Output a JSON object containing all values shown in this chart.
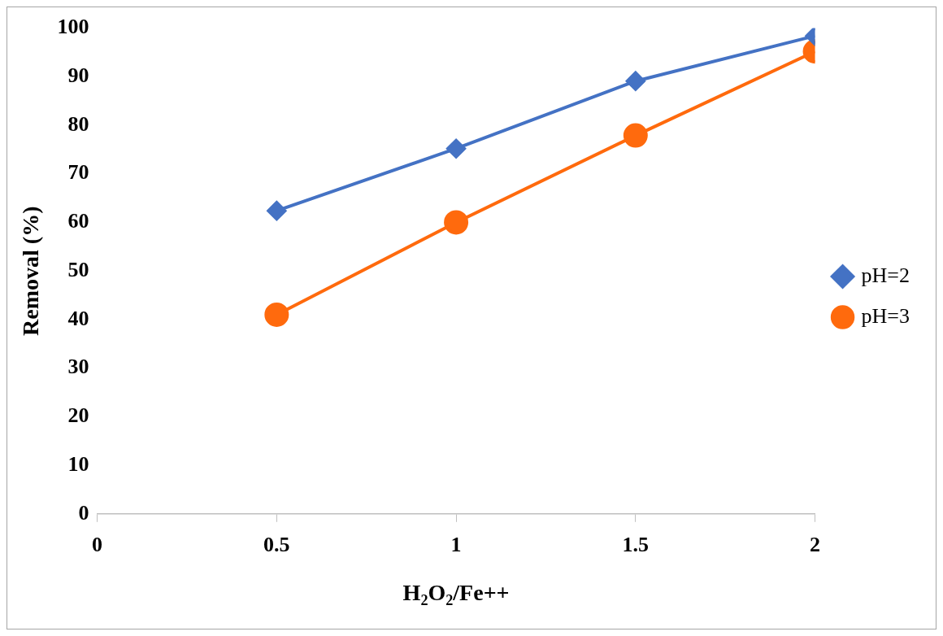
{
  "chart_data": {
    "type": "line",
    "xlabel": "H$_{2}$O$_{2}$/Fe++",
    "ylabel": "Removal (%)",
    "x": [
      0.5,
      1,
      1.5,
      2
    ],
    "series": [
      {
        "name": "pH=2",
        "color": "#4472c4",
        "marker": "diamond",
        "values": [
          62.4,
          75.2,
          89.1,
          98.4
        ]
      },
      {
        "name": "pH=3",
        "color": "#ff6a0d",
        "marker": "circle",
        "values": [
          41,
          60,
          77.9,
          95.2
        ]
      }
    ],
    "xlim": [
      0,
      2
    ],
    "xticks": [
      0,
      0.5,
      1,
      1.5,
      2
    ],
    "ylim": [
      0,
      100
    ],
    "yticks": [
      0,
      10,
      20,
      30,
      40,
      50,
      60,
      70,
      80,
      90,
      100
    ],
    "grid": false,
    "legend": "right",
    "line_style": "solid"
  }
}
